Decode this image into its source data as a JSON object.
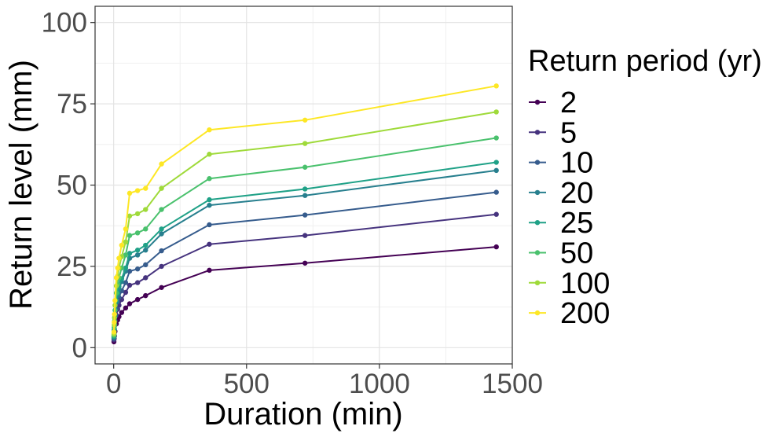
{
  "chart_data": {
    "type": "line",
    "xlabel": "Duration (min)",
    "ylabel": "Return level (mm)",
    "xlim": [
      -70,
      1500
    ],
    "ylim": [
      -5,
      105
    ],
    "x_ticks": [
      0,
      500,
      1000,
      1500
    ],
    "x_tick_labels": [
      "0",
      "500",
      "1000",
      "1500"
    ],
    "y_ticks": [
      0,
      25,
      50,
      75,
      100
    ],
    "y_tick_labels": [
      "0",
      "25",
      "50",
      "75",
      "100"
    ],
    "grid": true,
    "legend": {
      "title": "Return period (yr)",
      "position": "right"
    },
    "x": [
      1,
      2,
      3,
      5,
      10,
      15,
      20,
      30,
      45,
      60,
      90,
      120,
      180,
      360,
      720,
      1440
    ],
    "series": [
      {
        "name": "2",
        "color": "#440154",
        "values": [
          1.8,
          2.8,
          3.6,
          5.0,
          7.3,
          8.5,
          9.5,
          10.8,
          12.2,
          13.5,
          14.8,
          16.0,
          18.5,
          23.8,
          26.0,
          31.0
        ]
      },
      {
        "name": "5",
        "color": "#46337E",
        "values": [
          2.4,
          3.8,
          5.0,
          7.0,
          10.0,
          11.8,
          13.0,
          14.8,
          17.0,
          19.2,
          20.0,
          21.5,
          25.0,
          31.8,
          34.5,
          41.0
        ]
      },
      {
        "name": "10",
        "color": "#365C8D",
        "values": [
          2.8,
          4.4,
          5.8,
          8.2,
          12.0,
          14.0,
          15.5,
          17.5,
          20.0,
          23.5,
          24.2,
          25.5,
          29.8,
          37.8,
          40.8,
          47.8
        ]
      },
      {
        "name": "20",
        "color": "#277F8E",
        "values": [
          3.2,
          5.2,
          6.8,
          9.5,
          14.0,
          16.0,
          18.0,
          20.3,
          23.5,
          27.5,
          28.5,
          30.0,
          35.0,
          43.8,
          46.8,
          54.5
        ]
      },
      {
        "name": "25",
        "color": "#1FA187",
        "values": [
          3.4,
          5.5,
          7.2,
          10.0,
          14.5,
          16.8,
          18.8,
          21.2,
          24.5,
          29.0,
          30.0,
          31.5,
          36.5,
          45.5,
          48.8,
          57.0
        ]
      },
      {
        "name": "50",
        "color": "#4AC16D",
        "values": [
          3.8,
          6.2,
          8.2,
          11.5,
          16.8,
          19.5,
          21.5,
          24.5,
          28.5,
          34.5,
          35.3,
          36.5,
          42.5,
          52.0,
          55.5,
          64.5
        ]
      },
      {
        "name": "100",
        "color": "#9FDA3A",
        "values": [
          4.2,
          7.0,
          9.2,
          13.0,
          19.0,
          22.0,
          24.5,
          28.0,
          32.5,
          40.5,
          41.2,
          42.5,
          49.0,
          59.5,
          62.8,
          72.5
        ]
      },
      {
        "name": "200",
        "color": "#FDE725",
        "values": [
          4.8,
          7.8,
          10.3,
          14.5,
          21.5,
          24.5,
          27.5,
          31.5,
          36.5,
          47.5,
          48.3,
          49.0,
          56.5,
          67.0,
          70.0,
          80.5
        ]
      }
    ]
  }
}
